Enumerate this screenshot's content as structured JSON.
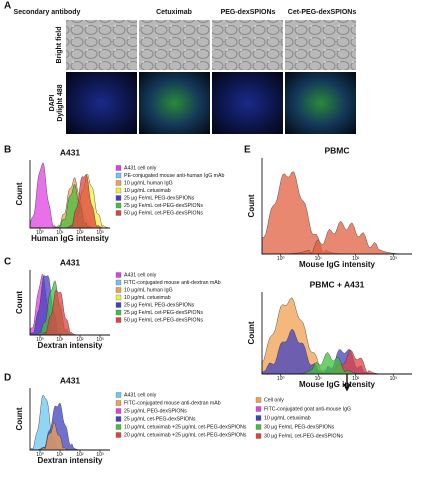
{
  "panel_a": {
    "label": "A",
    "columns": [
      "Secondary antibody",
      "Cetuximab",
      "PEG-dexSPIONs",
      "Cet-PEG-dexSPIONs"
    ],
    "rows": [
      "Bright field",
      "DAPI",
      "Dylight 488"
    ]
  },
  "plots": [
    {
      "label": "B",
      "title": "A431",
      "y_label": "Count",
      "x_label": "Human IgG intensity",
      "x_ticks": [
        "10⁰",
        "10¹",
        "10²",
        "10³"
      ],
      "legend": [
        {
          "name": "A431 cell only",
          "color": "#e040e0"
        },
        {
          "name": "PE-conjugated mouse anti-human IgG mAb",
          "color": "#6ec6f0"
        },
        {
          "name": "10 μg/mL human IgG",
          "color": "#f0a050"
        },
        {
          "name": "10 μg/mL cetuximab",
          "color": "#f0f040"
        },
        {
          "name": "25 μg Fe/mL PEG-dexSPIONs",
          "color": "#4040c0"
        },
        {
          "name": "25 μg Fe/mL cet-PEG-dexSPIONs",
          "color": "#40c040"
        },
        {
          "name": "50 μg Fe/mL cet-PEG-dexSPIONs",
          "color": "#e04040"
        }
      ]
    },
    {
      "label": "C",
      "title": "A431",
      "y_label": "Count",
      "x_label": "Dextran intensity",
      "x_ticks": [
        "10⁰",
        "10¹",
        "10²",
        "10³"
      ],
      "legend": [
        {
          "name": "A431 cell only",
          "color": "#e040e0"
        },
        {
          "name": "FITC-conjugated mouse anti-dextran mAb",
          "color": "#6ec6f0"
        },
        {
          "name": "10 μg/mL human IgG",
          "color": "#f0a050"
        },
        {
          "name": "10 μg/mL cetuximab",
          "color": "#f0f040"
        },
        {
          "name": "25 μg Fe/mL PEG-dexSPIONs",
          "color": "#4040c0"
        },
        {
          "name": "25 μg Fe/mL cet-PEG-dexSPIONs",
          "color": "#40c040"
        },
        {
          "name": "50 μg Fe/mL cet-PEG-dexSPIONs",
          "color": "#e04040"
        }
      ]
    },
    {
      "label": "D",
      "title": "A431",
      "y_label": "Count",
      "x_label": "Dextran intensity",
      "x_ticks": [
        "10⁰",
        "10¹",
        "10²",
        "10³"
      ],
      "legend": [
        {
          "name": "A431 cell only",
          "color": "#6ec6f0"
        },
        {
          "name": "FITC-conjugated mouse anti-dextran mAb",
          "color": "#f0a050"
        },
        {
          "name": "25 μg/mL PEG-dexSPIONs",
          "color": "#e040e0"
        },
        {
          "name": "25 μg/mL cet-PEG-dexSPIONs",
          "color": "#4040c0"
        },
        {
          "name": "10 μg/mL cetuximab +25 μg/mL cet-PEG-dexSPIONs",
          "color": "#40c040"
        },
        {
          "name": "20 μg/mL cetuximab +25 μg/mL cet-PEG-dexSPIONs",
          "color": "#e04040"
        }
      ]
    },
    {
      "label": "E",
      "title": "PBMC",
      "y_label": "Count",
      "x_label": "Mouse IgG intensity",
      "x_ticks": [
        "10⁰",
        "10¹",
        "10²",
        "10³"
      ]
    },
    {
      "title": "PBMC + A431",
      "y_label": "Count",
      "x_label": "Mouse IgG intensity",
      "x_ticks": [
        "10⁰",
        "10¹",
        "10²",
        "10³"
      ],
      "legend": [
        {
          "name": "Cell only",
          "color": "#f0a050"
        },
        {
          "name": "FITC-conjugated goat anti-mouse IgG",
          "color": "#e040e0"
        },
        {
          "name": "10 μg/mL cetuximab",
          "color": "#4040c0"
        },
        {
          "name": "30 μg Fe/mL PEG-dexSPIONs",
          "color": "#40c040"
        },
        {
          "name": "30 μg Fe/mL cet-PEG-dexSPIONs",
          "color": "#e04040"
        }
      ]
    }
  ]
}
